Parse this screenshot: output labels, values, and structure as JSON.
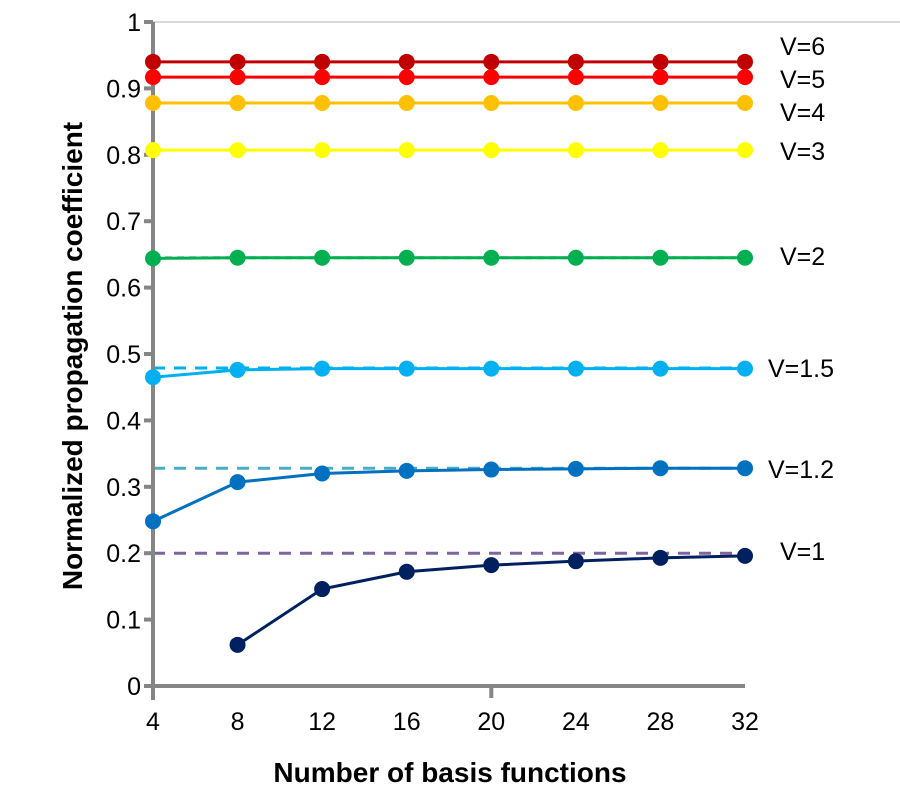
{
  "chart_data": {
    "type": "line",
    "title": "",
    "xlabel": "Number of basis functions",
    "ylabel": "Normalized propagation coefficient",
    "xlim": [
      4,
      32
    ],
    "ylim": [
      0,
      1
    ],
    "x_ticks": [
      4,
      8,
      12,
      16,
      20,
      24,
      28,
      32
    ],
    "x_tick_labels": [
      "4",
      "8",
      "12",
      "16",
      "20",
      "24",
      "28",
      "32"
    ],
    "y_ticks": [
      0,
      0.1,
      0.2,
      0.3,
      0.4,
      0.5,
      0.6,
      0.7,
      0.8,
      0.9,
      1
    ],
    "y_tick_labels": [
      "0",
      "0.1",
      "0.2",
      "0.3",
      "0.4",
      "0.5",
      "0.6",
      "0.7",
      "0.8",
      "0.9",
      "1"
    ],
    "grid": "top line only",
    "legend": "inline labels at right end of each series",
    "series": [
      {
        "name": "V=6",
        "label": "V=6",
        "color": "#c00000",
        "x": [
          4,
          8,
          12,
          16,
          20,
          24,
          28,
          32
        ],
        "values": [
          0.94,
          0.94,
          0.94,
          0.94,
          0.94,
          0.94,
          0.94,
          0.94
        ]
      },
      {
        "name": "V=5",
        "label": "V=5",
        "color": "#ff0000",
        "x": [
          4,
          8,
          12,
          16,
          20,
          24,
          28,
          32
        ],
        "values": [
          0.917,
          0.917,
          0.917,
          0.917,
          0.917,
          0.917,
          0.917,
          0.917
        ]
      },
      {
        "name": "V=4",
        "label": "V=4",
        "color": "#ffc000",
        "x": [
          4,
          8,
          12,
          16,
          20,
          24,
          28,
          32
        ],
        "values": [
          0.878,
          0.878,
          0.878,
          0.878,
          0.878,
          0.878,
          0.878,
          0.878
        ]
      },
      {
        "name": "V=3",
        "label": "V=3",
        "color": "#ffff00",
        "x": [
          4,
          8,
          12,
          16,
          20,
          24,
          28,
          32
        ],
        "values": [
          0.807,
          0.807,
          0.807,
          0.807,
          0.807,
          0.807,
          0.807,
          0.807
        ]
      },
      {
        "name": "V=2",
        "label": "V=2",
        "color": "#00b050",
        "x": [
          4,
          8,
          12,
          16,
          20,
          24,
          28,
          32
        ],
        "values": [
          0.644,
          0.645,
          0.645,
          0.645,
          0.645,
          0.645,
          0.645,
          0.645
        ]
      },
      {
        "name": "V=1.5",
        "label": "V=1.5",
        "color": "#00b0f0",
        "x": [
          4,
          8,
          12,
          16,
          20,
          24,
          28,
          32
        ],
        "values": [
          0.465,
          0.476,
          0.478,
          0.478,
          0.478,
          0.478,
          0.478,
          0.478
        ]
      },
      {
        "name": "V=1.2",
        "label": "V=1.2",
        "color": "#0070c0",
        "x": [
          4,
          8,
          12,
          16,
          20,
          24,
          28,
          32
        ],
        "values": [
          0.248,
          0.307,
          0.32,
          0.324,
          0.326,
          0.327,
          0.328,
          0.328
        ]
      },
      {
        "name": "V=1",
        "label": "V=1",
        "color": "#002060",
        "x": [
          8,
          12,
          16,
          20,
          24,
          28,
          32
        ],
        "values": [
          0.062,
          0.146,
          0.172,
          0.182,
          0.188,
          0.193,
          0.196
        ]
      }
    ],
    "reference_lines": [
      {
        "name": "V=2 reference",
        "value": 0.645,
        "color": "#a6a6c0",
        "style": "dashed"
      },
      {
        "name": "V=1.5 reference",
        "value": 0.479,
        "color": "#00b0f0",
        "style": "dashed"
      },
      {
        "name": "V=1.2 reference",
        "value": 0.328,
        "color": "#4bacc6",
        "style": "dashed"
      },
      {
        "name": "V=1 reference",
        "value": 0.2,
        "color": "#8064a2",
        "style": "dashed"
      }
    ],
    "axis_color": "#868686",
    "grid_color": "#d9d9d9"
  }
}
